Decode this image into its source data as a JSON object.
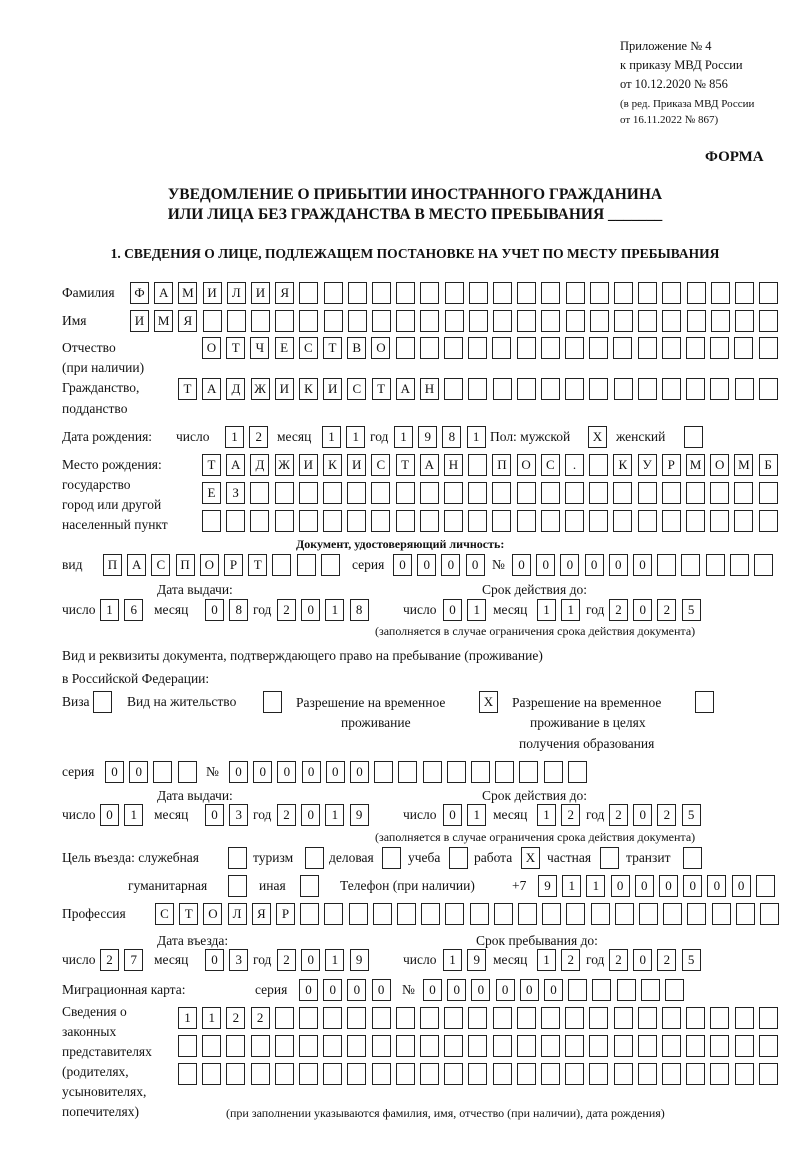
{
  "header": {
    "line1": "Приложение № 4",
    "line2": "к приказу МВД России",
    "line3": "от 10.12.2020 № 856",
    "line4": "(в ред. Приказа МВД России",
    "line5": "от 16.11.2022 № 867)",
    "form_label": "ФОРМА",
    "title1": "УВЕДОМЛЕНИЕ О ПРИБЫТИИ ИНОСТРАННОГО ГРАЖДАНИНА",
    "title2": "ИЛИ ЛИЦА БЕЗ ГРАЖДАНСТВА В МЕСТО ПРЕБЫВАНИЯ _______",
    "section1": "1. СВЕДЕНИЯ О ЛИЦЕ, ПОДЛЕЖАЩЕМ ПОСТАНОВКЕ НА УЧЕТ ПО МЕСТУ ПРЕБЫВАНИЯ"
  },
  "labels": {
    "surname": "Фамилия",
    "name": "Имя",
    "patronymic1": "Отчество",
    "patronymic2": "(при наличии)",
    "citizenship1": "Гражданство,",
    "citizenship2": "подданство",
    "birth_date": "Дата рождения:",
    "day": "число",
    "month": "месяц",
    "year": "год",
    "sex": "Пол: мужской",
    "female": "женский",
    "birthplace1": "Место рождения:",
    "birthplace2": "государство",
    "birthplace3": "город или другой",
    "birthplace4": "населенный пункт",
    "id_doc": "Документ, удостоверяющий личность:",
    "kind": "вид",
    "series": "серия",
    "number": "№",
    "issue_date": "Дата выдачи:",
    "valid_until": "Срок действия до:",
    "valid_note": "(заполняется в случае ограничения срока действия документа)",
    "stay_doc1": "Вид и реквизиты документа, подтверждающего право на пребывание (проживание)",
    "stay_doc2": "в Российской Федерации:",
    "visa": "Виза",
    "residence": "Вид на жительство",
    "trp1": "Разрешение на временное",
    "trp2": "проживание",
    "trp_edu1": "Разрешение на временное",
    "trp_edu2": "проживание в целях",
    "trp_edu3": "получения образования",
    "purpose": "Цель въезда: служебная",
    "tourism": "туризм",
    "business": "деловая",
    "study": "учеба",
    "work": "работа",
    "private": "частная",
    "transit": "транзит",
    "humanitarian": "гуманитарная",
    "other": "иная",
    "phone": "Телефон (при наличии)",
    "phone_prefix": "+7",
    "profession": "Профессия",
    "entry_date": "Дата въезда:",
    "stay_until": "Срок пребывания до:",
    "migration_card": "Миграционная карта:",
    "reps1": "Сведения о",
    "reps2": "законных",
    "reps3": "представителях",
    "reps4": "(родителях,",
    "reps5": "усыновителях,",
    "reps6": "попечителях)",
    "reps_note": "(при заполнении указываются фамилия, имя, отчество (при наличии), дата рождения)"
  },
  "values": {
    "surname": "ФАМИЛИЯ",
    "name": "ИМЯ",
    "patronymic": "ОТЧЕСТВО",
    "citizenship": "ТАДЖИКИСТАН",
    "birth_day": "12",
    "birth_month": "11",
    "birth_year": "1981",
    "sex_male": "X",
    "sex_female": "",
    "birthplace1": "ТАДЖИКИСТАН ПОС. КУРМОМБ",
    "birthplace2": "ЕЗ",
    "birthplace3": "",
    "doc_kind": "ПАСПОРТ",
    "doc_series": "0000",
    "doc_number": "000000",
    "doc_issue_day": "16",
    "doc_issue_month": "08",
    "doc_issue_year": "2018",
    "doc_valid_day": "01",
    "doc_valid_month": "11",
    "doc_valid_year": "2025",
    "visa": "",
    "residence": "",
    "trp": "X",
    "trp_edu": "",
    "stay_series": "00",
    "stay_number": "000000",
    "stay_issue_day": "01",
    "stay_issue_month": "03",
    "stay_issue_year": "2019",
    "stay_valid_day": "01",
    "stay_valid_month": "12",
    "stay_valid_year": "2025",
    "p_service": "",
    "p_tourism": "",
    "p_business": "",
    "p_study": "",
    "p_work": "X",
    "p_private": "",
    "p_transit": "",
    "p_humanitarian": "",
    "p_other": "",
    "phone": "911000000",
    "profession": "СТОЛЯР",
    "entry_day": "27",
    "entry_month": "03",
    "entry_year": "2019",
    "until_day": "19",
    "until_month": "12",
    "until_year": "2025",
    "mc_series": "0000",
    "mc_number": "000000",
    "reps1": "1122",
    "reps2": "",
    "reps3": ""
  }
}
